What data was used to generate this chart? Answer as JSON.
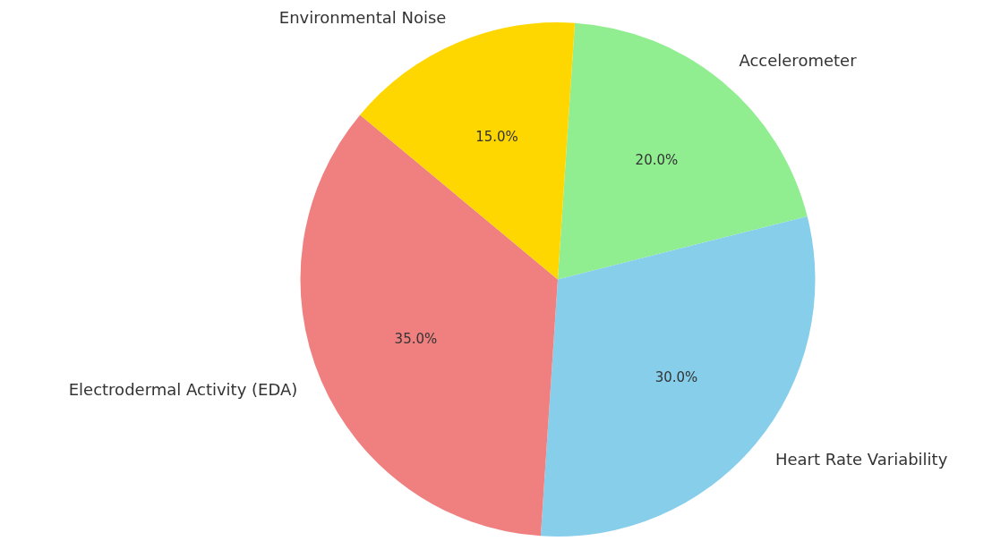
{
  "chart_data": {
    "type": "pie",
    "categories": [
      "Accelerometer",
      "Heart Rate Variability",
      "Electrodermal Activity (EDA)",
      "Environmental Noise"
    ],
    "values": [
      20,
      30,
      35,
      15
    ],
    "colors": [
      "#90ee90",
      "#87ceeb",
      "#f08080",
      "#ffd700"
    ],
    "value_labels": [
      "20.0%",
      "30.0%",
      "35.0%",
      "15.0%"
    ],
    "legend": false
  }
}
